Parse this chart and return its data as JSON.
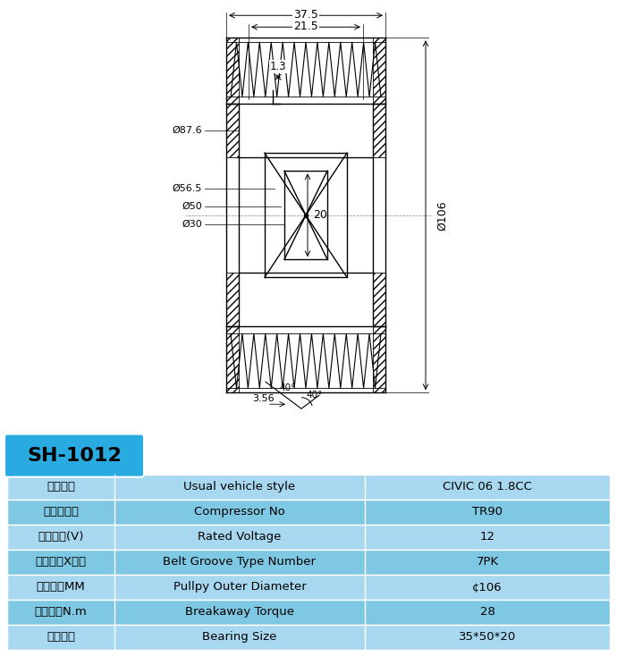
{
  "title": "SH-1012",
  "table_rows": [
    {
      "cn": "常用车型",
      "en": "Usual vehicle style",
      "val": "CIVIC 06 1.8CC"
    },
    {
      "cn": "压缩机型号",
      "en": "Compressor No",
      "val": "TR90"
    },
    {
      "cn": "额定电压(V)",
      "en": "Rated Voltage",
      "val": "12"
    },
    {
      "cn": "皮带槽数X根数",
      "en": "Belt Groove Type Number",
      "val": "7PK"
    },
    {
      "cn": "有效外径MM",
      "en": "Pullpy Outer Diameter",
      "val": "¢106"
    },
    {
      "cn": "脱离扔距N.m",
      "en": "Breakaway Torque",
      "val": "28"
    },
    {
      "cn": "轴承规格",
      "en": "Bearing Size",
      "val": "35*50*20"
    }
  ],
  "header_bg": "#29ABE2",
  "row_bg_light": "#A8D8F0",
  "row_bg_dark": "#7EC8E3",
  "border_color": "#FFFFFF",
  "title_color": "#000000",
  "diagram_bg": "#FFFFFF",
  "line_color": "#000000",
  "hatch_color": "#000000"
}
